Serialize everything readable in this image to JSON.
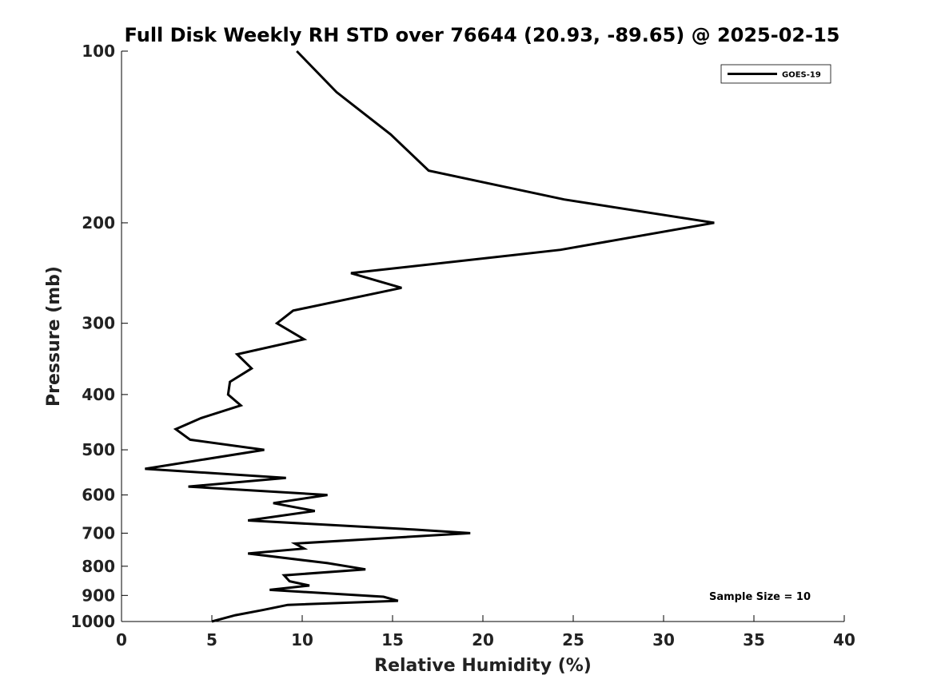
{
  "chart_data": {
    "type": "line",
    "title": "Full Disk Weekly RH STD over 76644 (20.93, -89.65) @ 2025-02-15",
    "xlabel": "Relative Humidity (%)",
    "ylabel": "Pressure (mb)",
    "xlim": [
      0,
      40
    ],
    "ylim": [
      100,
      1000
    ],
    "yscale": "log",
    "y_reversed": true,
    "grid": false,
    "legend_position": "top-right",
    "x_ticks": [
      0,
      5,
      10,
      15,
      20,
      25,
      30,
      35,
      40
    ],
    "x_tick_labels": [
      "0",
      "5",
      "10",
      "15",
      "20",
      "25",
      "30",
      "35",
      "40"
    ],
    "y_ticks": [
      100,
      200,
      300,
      400,
      500,
      600,
      700,
      800,
      900,
      1000
    ],
    "y_tick_labels": [
      "100",
      "200",
      "300",
      "400",
      "500",
      "600",
      "700",
      "800",
      "900",
      "1000"
    ],
    "annotation": "Sample Size = 10",
    "series": [
      {
        "name": "GOES-19",
        "color": "#000000",
        "x": [
          9.7,
          11.9,
          14.9,
          17.0,
          24.5,
          32.8,
          24.3,
          12.7,
          15.5,
          9.5,
          8.6,
          10.1,
          6.4,
          7.2,
          6.0,
          5.9,
          6.6,
          4.4,
          3.0,
          3.8,
          7.9,
          1.3,
          9.1,
          3.7,
          11.4,
          8.4,
          10.7,
          7.0,
          16.2,
          19.3,
          9.6,
          10.1,
          7.0,
          11.4,
          13.5,
          9.0,
          9.3,
          10.4,
          8.2,
          14.5,
          15.3,
          9.2,
          7.8,
          6.3,
          5.0
        ],
        "y": [
          100,
          118,
          140,
          162,
          182,
          200,
          223,
          245,
          260,
          285,
          300,
          320,
          340,
          360,
          380,
          400,
          418,
          440,
          460,
          480,
          500,
          540,
          560,
          580,
          600,
          620,
          640,
          665,
          690,
          700,
          730,
          745,
          760,
          790,
          810,
          830,
          850,
          865,
          880,
          905,
          920,
          935,
          955,
          975,
          1000
        ]
      }
    ]
  }
}
